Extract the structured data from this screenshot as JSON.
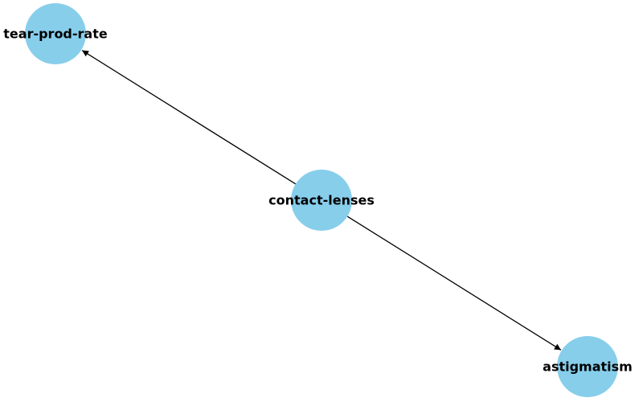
{
  "diagram": {
    "type": "directed-graph",
    "node_color": "#87CEEB",
    "edge_color": "#000000",
    "label_color": "#000000",
    "nodes": [
      {
        "id": "tear-prod-rate",
        "label": "tear-prod-rate"
      },
      {
        "id": "contact-lenses",
        "label": "contact-lenses"
      },
      {
        "id": "astigmatism",
        "label": "astigmatism"
      }
    ],
    "edges": [
      {
        "from": "contact-lenses",
        "to": "tear-prod-rate"
      },
      {
        "from": "contact-lenses",
        "to": "astigmatism"
      }
    ]
  }
}
